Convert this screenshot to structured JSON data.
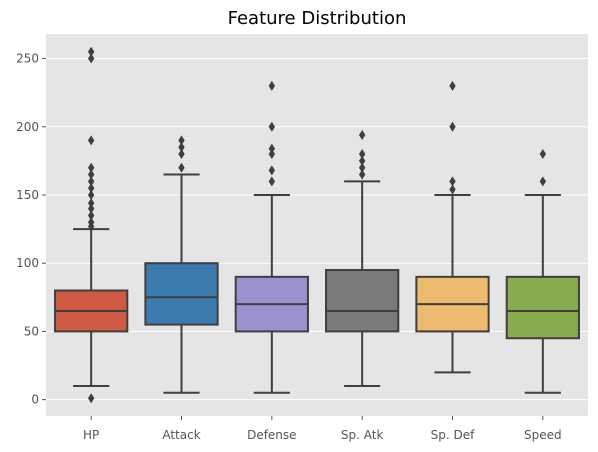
{
  "chart_data": {
    "type": "box",
    "title": "Feature Distribution",
    "xlabel": "",
    "ylabel": "",
    "ylim": [
      -12,
      268
    ],
    "yticks": [
      0,
      50,
      100,
      150,
      200,
      250
    ],
    "categories": [
      "HP",
      "Attack",
      "Defense",
      "Sp. Atk",
      "Sp. Def",
      "Speed"
    ],
    "grid": true,
    "background": "#E5E5E5",
    "series": [
      {
        "category": "HP",
        "color": "#CE5A44",
        "whisker_low": 10,
        "q1": 50,
        "median": 65,
        "q3": 80,
        "whisker_high": 125,
        "outliers": [
          1,
          127,
          130,
          135,
          140,
          144,
          150,
          155,
          160,
          165,
          170,
          190,
          250,
          255
        ]
      },
      {
        "category": "Attack",
        "color": "#3C7BB0",
        "whisker_low": 5,
        "q1": 55,
        "median": 75,
        "q3": 100,
        "whisker_high": 165,
        "outliers": [
          170,
          180,
          185,
          190
        ]
      },
      {
        "category": "Defense",
        "color": "#9A92CE",
        "whisker_low": 5,
        "q1": 50,
        "median": 70,
        "q3": 90,
        "whisker_high": 150,
        "outliers": [
          160,
          168,
          180,
          184,
          200,
          230
        ]
      },
      {
        "category": "Sp. Atk",
        "color": "#7A7A7A",
        "whisker_low": 10,
        "q1": 50,
        "median": 65,
        "q3": 95,
        "whisker_high": 160,
        "outliers": [
          165,
          170,
          175,
          180,
          194
        ]
      },
      {
        "category": "Sp. Def",
        "color": "#EDBB6F",
        "whisker_low": 20,
        "q1": 50,
        "median": 70,
        "q3": 90,
        "whisker_high": 150,
        "outliers": [
          154,
          160,
          200,
          230
        ]
      },
      {
        "category": "Speed",
        "color": "#88AB4E",
        "whisker_low": 5,
        "q1": 45,
        "median": 65,
        "q3": 90,
        "whisker_high": 150,
        "outliers": [
          160,
          180
        ]
      }
    ]
  }
}
